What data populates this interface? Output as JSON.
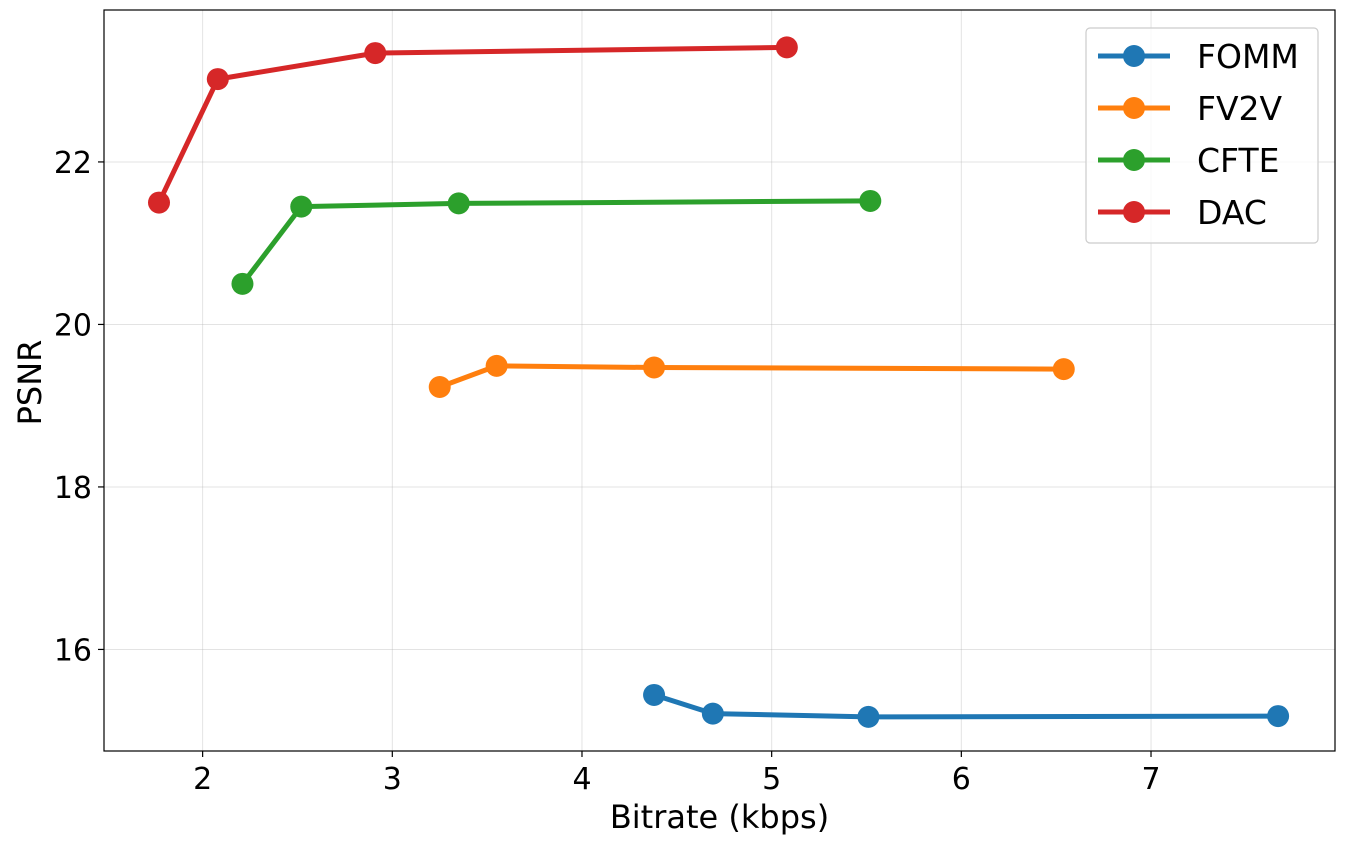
{
  "chart_data": {
    "type": "line",
    "title": "",
    "xlabel": "Bitrate (kbps)",
    "ylabel": "PSNR",
    "xlim": [
      1.48,
      7.97
    ],
    "ylim": [
      14.75,
      23.87
    ],
    "xticks": [
      2,
      3,
      4,
      5,
      6,
      7
    ],
    "yticks": [
      16,
      18,
      20,
      22
    ],
    "grid": true,
    "legend_position": "top-right",
    "series": [
      {
        "name": "FOMM",
        "color": "#1f77b4",
        "x": [
          4.38,
          4.69,
          5.51,
          7.67
        ],
        "y": [
          15.44,
          15.21,
          15.17,
          15.18
        ]
      },
      {
        "name": "FV2V",
        "color": "#ff7f0e",
        "x": [
          3.25,
          3.55,
          4.38,
          6.54
        ],
        "y": [
          19.23,
          19.49,
          19.47,
          19.45
        ]
      },
      {
        "name": "CFTE",
        "color": "#2ca02c",
        "x": [
          2.21,
          2.52,
          3.35,
          5.52
        ],
        "y": [
          20.5,
          21.45,
          21.49,
          21.52
        ]
      },
      {
        "name": "DAC",
        "color": "#d62728",
        "x": [
          1.77,
          2.08,
          2.91,
          5.08
        ],
        "y": [
          21.5,
          23.02,
          23.34,
          23.41
        ]
      }
    ]
  }
}
